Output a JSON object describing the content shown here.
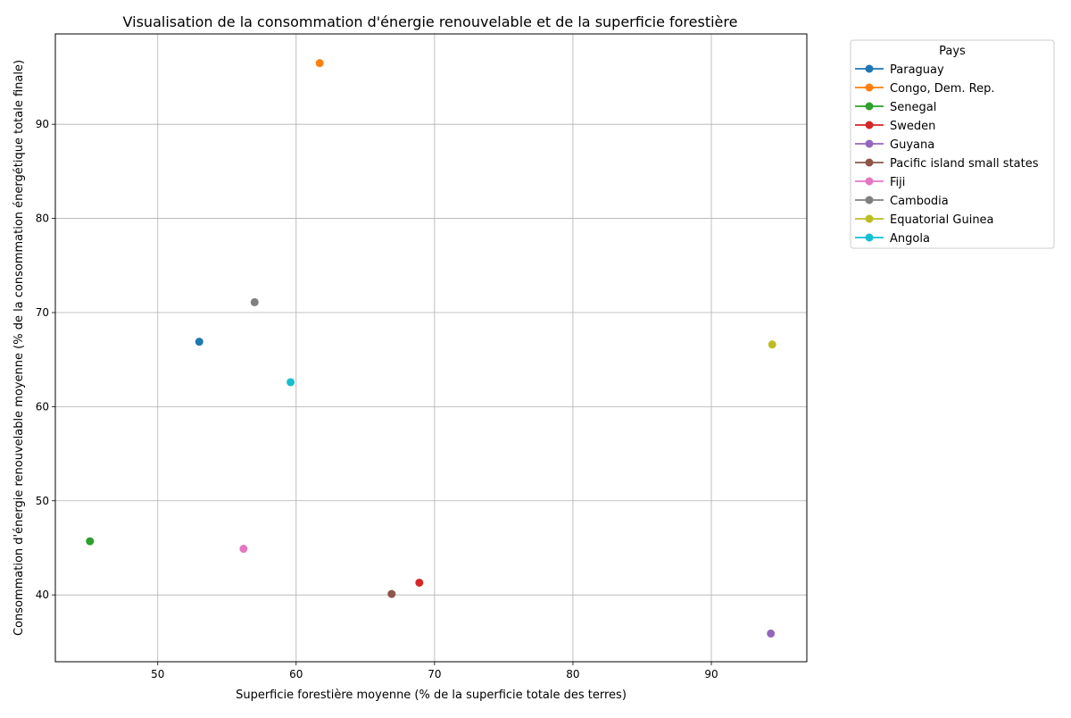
{
  "chart_data": {
    "type": "scatter",
    "title": "Visualisation de la consommation d'énergie renouvelable et de la superficie forestière",
    "xlabel": "Superficie forestière moyenne (% de la superficie totale des terres)",
    "ylabel": "Consommation d'énergie renouvelable moyenne (% de la consommation énergétique totale finale)",
    "xlim": [
      42.6,
      96.9
    ],
    "ylim": [
      32.9,
      99.6
    ],
    "xticks": [
      50,
      60,
      70,
      80,
      90
    ],
    "yticks": [
      40,
      50,
      60,
      70,
      80,
      90
    ],
    "grid": true,
    "legend_title": "Pays",
    "legend_placement": "outside-top-right",
    "series": [
      {
        "name": "Paraguay",
        "color": "#1f77b4",
        "x": 53.0,
        "y": 66.9
      },
      {
        "name": "Congo, Dem. Rep.",
        "color": "#ff7f0e",
        "x": 61.7,
        "y": 96.5
      },
      {
        "name": "Senegal",
        "color": "#2ca02c",
        "x": 45.1,
        "y": 45.7
      },
      {
        "name": "Sweden",
        "color": "#d62728",
        "x": 68.9,
        "y": 41.3
      },
      {
        "name": "Guyana",
        "color": "#9467bd",
        "x": 94.3,
        "y": 35.9
      },
      {
        "name": "Pacific island small states",
        "color": "#8c564b",
        "x": 66.9,
        "y": 40.1
      },
      {
        "name": "Fiji",
        "color": "#e377c2",
        "x": 56.2,
        "y": 44.9
      },
      {
        "name": "Cambodia",
        "color": "#7f7f7f",
        "x": 57.0,
        "y": 71.1
      },
      {
        "name": "Equatorial Guinea",
        "color": "#bcbd22",
        "x": 94.4,
        "y": 66.6
      },
      {
        "name": "Angola",
        "color": "#17becf",
        "x": 59.6,
        "y": 62.6
      }
    ]
  }
}
